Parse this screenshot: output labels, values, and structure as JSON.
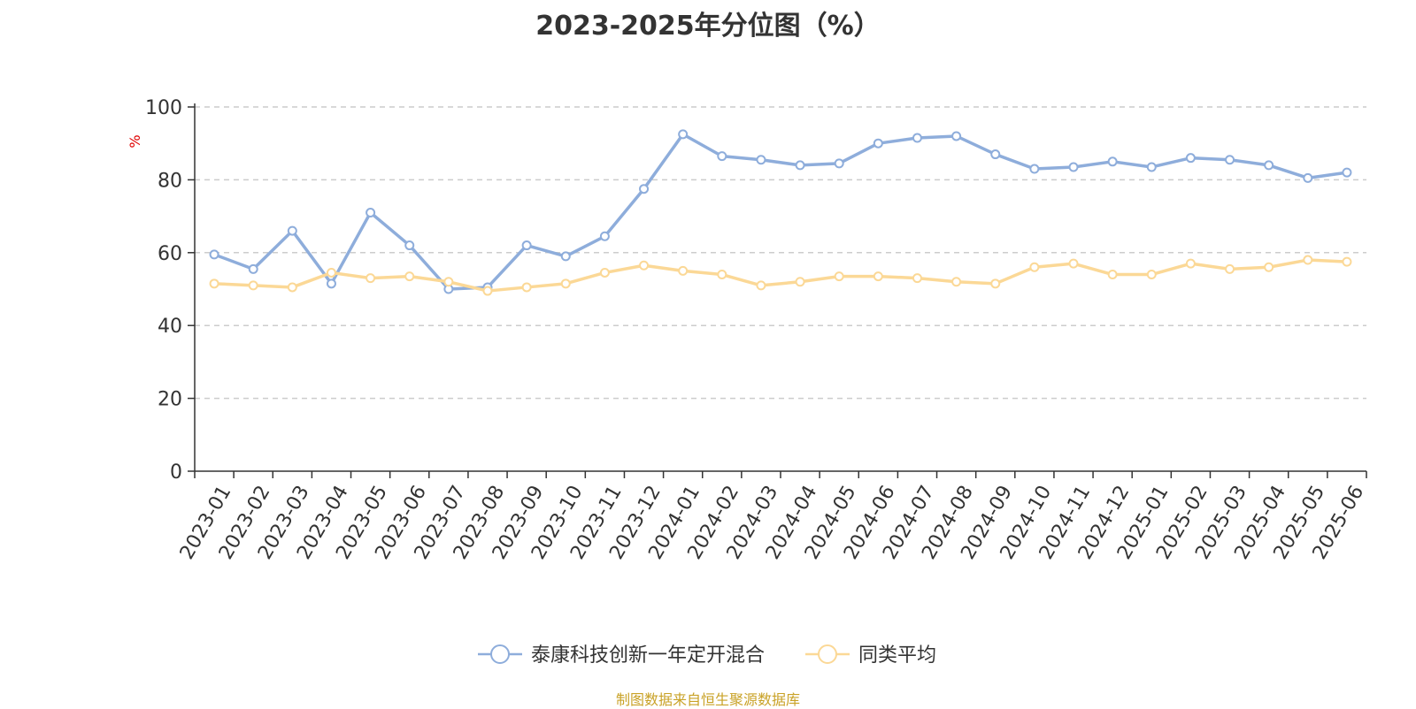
{
  "chart_data": {
    "type": "line",
    "title": "2023-2025年分位图（%）",
    "ylabel": "%",
    "ylim": [
      0,
      100
    ],
    "yticks": [
      0,
      20,
      40,
      60,
      80,
      100
    ],
    "grid": true,
    "legend_position": "bottom",
    "categories": [
      "2023-01",
      "2023-02",
      "2023-03",
      "2023-04",
      "2023-05",
      "2023-06",
      "2023-07",
      "2023-08",
      "2023-09",
      "2023-10",
      "2023-11",
      "2023-12",
      "2024-01",
      "2024-02",
      "2024-03",
      "2024-04",
      "2024-05",
      "2024-06",
      "2024-07",
      "2024-08",
      "2024-09",
      "2024-10",
      "2024-11",
      "2024-12",
      "2025-01",
      "2025-02",
      "2025-03",
      "2025-04",
      "2025-05",
      "2025-06"
    ],
    "series": [
      {
        "name": "泰康科技创新一年定开混合",
        "color": "#8eaddb",
        "values": [
          59.5,
          55.5,
          66.0,
          51.5,
          71.0,
          62.0,
          50.0,
          50.5,
          62.0,
          59.0,
          64.5,
          77.5,
          92.5,
          86.5,
          85.5,
          84.0,
          84.5,
          90.0,
          91.5,
          92.0,
          87.0,
          83.0,
          83.5,
          85.0,
          83.5,
          86.0,
          85.5,
          84.0,
          80.5,
          82.0
        ]
      },
      {
        "name": "同类平均",
        "color": "#fbd896",
        "values": [
          51.5,
          51.0,
          50.5,
          54.5,
          53.0,
          53.5,
          52.0,
          49.5,
          50.5,
          51.5,
          54.5,
          56.5,
          55.0,
          54.0,
          51.0,
          52.0,
          53.5,
          53.5,
          53.0,
          52.0,
          51.5,
          56.0,
          57.0,
          54.0,
          54.0,
          57.0,
          55.5,
          56.0,
          58.0,
          57.5
        ]
      }
    ]
  },
  "source": {
    "text": "制图数据来自恒生聚源数据库",
    "color": "#c9a227"
  },
  "axis_color": "#333333",
  "grid_color": "#cccccc"
}
